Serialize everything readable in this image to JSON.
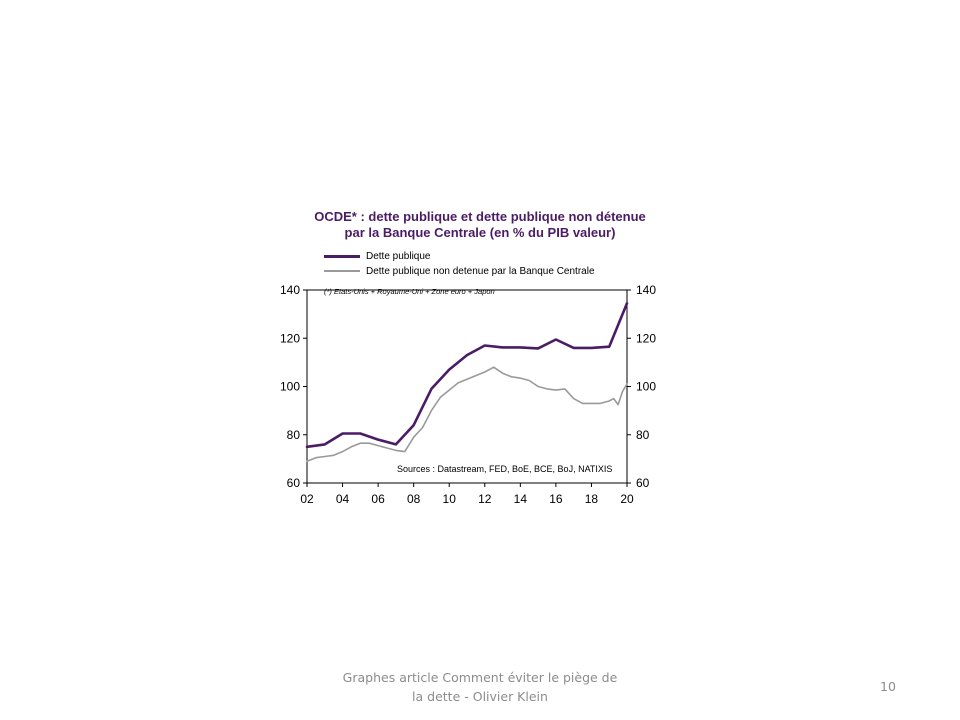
{
  "slide": {
    "footer_line1": "Graphes article Comment  éviter le piège de",
    "footer_line2": "la dette - Olivier Klein",
    "page_number": "10"
  },
  "colors": {
    "dette_publique": "#4b1c66",
    "non_detenue": "#9a9a9a",
    "title": "#4b1c66"
  },
  "chart_data": {
    "type": "line",
    "title": "OCDE* : dette publique et dette publique non détenue",
    "subtitle": "par la Banque Centrale (en % du PIB valeur)",
    "footnote": "(*) Etats-Unis + Royaume-Uni + Zone euro + Japon",
    "source": "Sources : Datastream,  FED, BoE, BCE, BoJ, NATIXIS",
    "xlim": [
      2002,
      2020
    ],
    "ylim": [
      60,
      140
    ],
    "x_ticks": [
      2002,
      2004,
      2006,
      2008,
      2010,
      2012,
      2014,
      2016,
      2018,
      2020
    ],
    "x_tick_labels": [
      "02",
      "04",
      "06",
      "08",
      "10",
      "12",
      "14",
      "16",
      "18",
      "20"
    ],
    "y_ticks": [
      60,
      80,
      100,
      120,
      140
    ],
    "y_tick_labels": [
      "60",
      "80",
      "100",
      "120",
      "140"
    ],
    "legend_position": "top-left",
    "grid": false,
    "series": [
      {
        "name": "Dette publique",
        "color": "#4b1c66",
        "x": [
          2002,
          2003,
          2004,
          2005,
          2006,
          2007,
          2008,
          2009,
          2010,
          2011,
          2012,
          2013,
          2014,
          2015,
          2016,
          2017,
          2018,
          2019,
          2020
        ],
        "y": [
          75,
          76,
          80.5,
          80.5,
          78,
          76,
          84,
          99,
          107,
          113,
          117,
          116.2,
          116.2,
          115.8,
          119.5,
          116,
          116,
          116.5,
          134.5
        ]
      },
      {
        "name": "Dette publique non detenue par la Banque Centrale",
        "color": "#9a9a9a",
        "x": [
          2002,
          2002.5,
          2003,
          2003.5,
          2004,
          2004.5,
          2005,
          2005.5,
          2006,
          2006.5,
          2007,
          2007.5,
          2008,
          2008.5,
          2009,
          2009.5,
          2010,
          2010.5,
          2011,
          2011.5,
          2012,
          2012.5,
          2013,
          2013.5,
          2014,
          2014.5,
          2015,
          2015.5,
          2016,
          2016.5,
          2017,
          2017.5,
          2018,
          2018.5,
          2019,
          2019.25,
          2019.5,
          2019.75,
          2020
        ],
        "y": [
          69,
          70.5,
          71,
          71.5,
          73,
          75,
          76.5,
          76.5,
          75.5,
          74.5,
          73.5,
          73,
          79,
          83,
          90,
          95.5,
          98.5,
          101.5,
          103,
          104.5,
          106,
          108,
          105.5,
          104,
          103.5,
          102.5,
          100,
          99,
          98.5,
          99,
          95,
          93,
          93,
          93,
          94,
          95,
          92.5,
          98,
          101
        ]
      }
    ]
  }
}
